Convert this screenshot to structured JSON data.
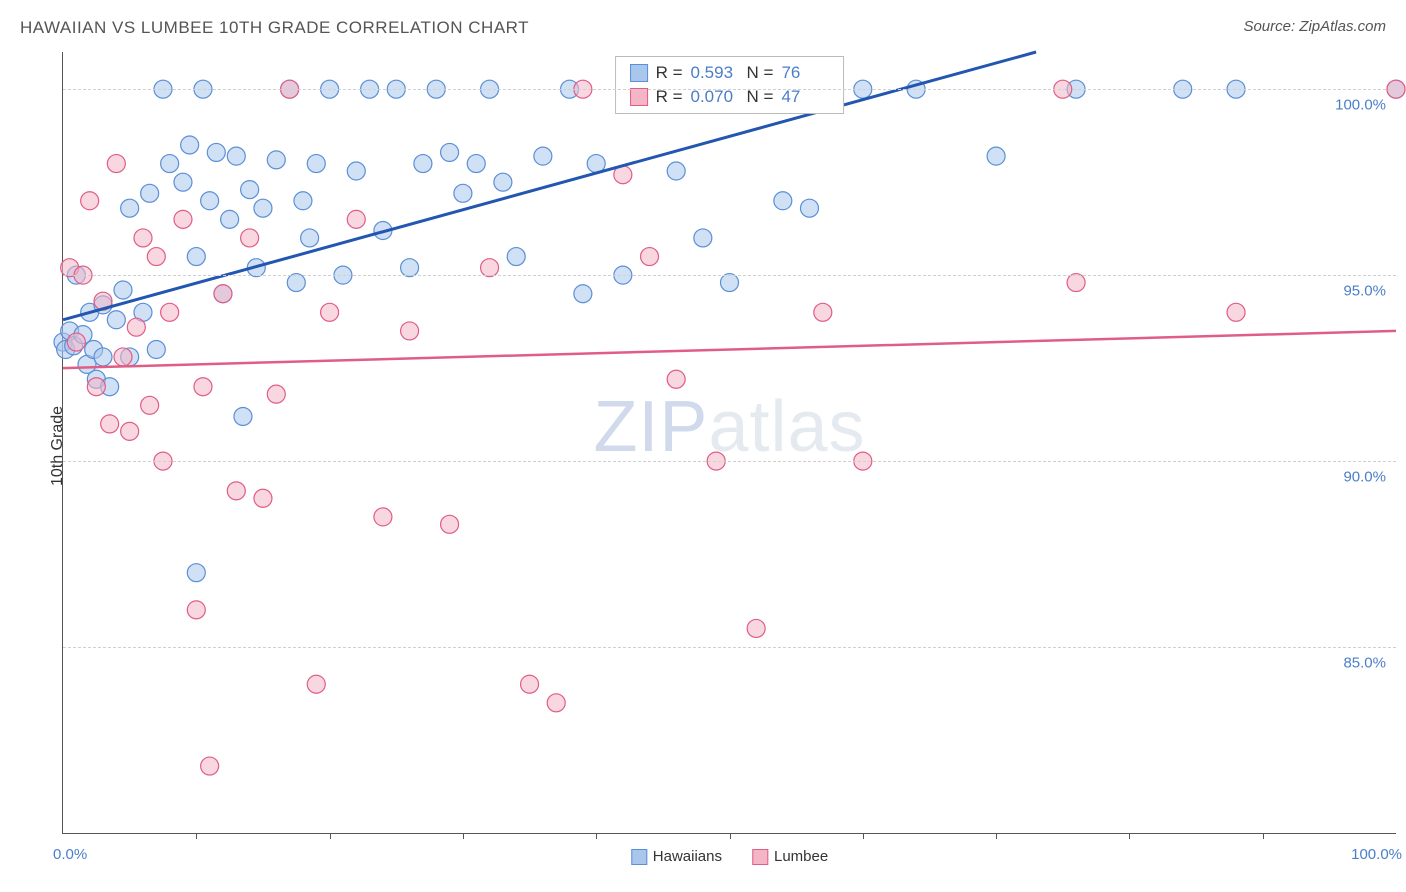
{
  "title": "HAWAIIAN VS LUMBEE 10TH GRADE CORRELATION CHART",
  "source": "Source: ZipAtlas.com",
  "ylabel": "10th Grade",
  "watermark_a": "ZIP",
  "watermark_b": "atlas",
  "chart": {
    "type": "scatter",
    "xlim": [
      0,
      100
    ],
    "ylim": [
      80,
      101
    ],
    "x_ticks_minor": [
      10,
      20,
      30,
      40,
      50,
      60,
      70,
      80,
      90
    ],
    "x_labels": {
      "min": "0.0%",
      "max": "100.0%"
    },
    "y_gridlines": [
      85,
      90,
      95,
      100
    ],
    "y_labels": [
      "85.0%",
      "90.0%",
      "95.0%",
      "100.0%"
    ],
    "grid_color": "#d0d0d0",
    "axis_color": "#555555",
    "label_color": "#4a7ec9",
    "series": [
      {
        "name": "Hawaiians",
        "fill": "#a9c7ec",
        "stroke": "#5b8fd6",
        "fill_opacity": 0.55,
        "marker_r": 9,
        "R": "0.593",
        "N": "76",
        "trend": {
          "x1": 0,
          "y1": 93.8,
          "x2": 73,
          "y2": 101,
          "color": "#2256b0",
          "width": 3
        },
        "points": [
          [
            0,
            93.2
          ],
          [
            0.2,
            93.0
          ],
          [
            0.5,
            93.5
          ],
          [
            0.8,
            93.1
          ],
          [
            1.0,
            95.0
          ],
          [
            1.5,
            93.4
          ],
          [
            1.8,
            92.6
          ],
          [
            2.0,
            94.0
          ],
          [
            2.3,
            93.0
          ],
          [
            2.5,
            92.2
          ],
          [
            3.0,
            94.2
          ],
          [
            3.0,
            92.8
          ],
          [
            3.5,
            92.0
          ],
          [
            4.0,
            93.8
          ],
          [
            4.5,
            94.6
          ],
          [
            5.0,
            92.8
          ],
          [
            5.0,
            96.8
          ],
          [
            6.0,
            94.0
          ],
          [
            6.5,
            97.2
          ],
          [
            7.0,
            93.0
          ],
          [
            7.5,
            100.0
          ],
          [
            8.0,
            98.0
          ],
          [
            9.0,
            97.5
          ],
          [
            9.5,
            98.5
          ],
          [
            10.0,
            87.0
          ],
          [
            10.0,
            95.5
          ],
          [
            10.5,
            100.0
          ],
          [
            11.0,
            97.0
          ],
          [
            11.5,
            98.3
          ],
          [
            12.0,
            94.5
          ],
          [
            12.5,
            96.5
          ],
          [
            13.0,
            98.2
          ],
          [
            13.5,
            91.2
          ],
          [
            14.0,
            97.3
          ],
          [
            14.5,
            95.2
          ],
          [
            15.0,
            96.8
          ],
          [
            16.0,
            98.1
          ],
          [
            17.0,
            100.0
          ],
          [
            17.5,
            94.8
          ],
          [
            18.0,
            97.0
          ],
          [
            18.5,
            96.0
          ],
          [
            19.0,
            98.0
          ],
          [
            20.0,
            100.0
          ],
          [
            21.0,
            95.0
          ],
          [
            22.0,
            97.8
          ],
          [
            23.0,
            100.0
          ],
          [
            24.0,
            96.2
          ],
          [
            25.0,
            100.0
          ],
          [
            26.0,
            95.2
          ],
          [
            27.0,
            98.0
          ],
          [
            28.0,
            100.0
          ],
          [
            29.0,
            98.3
          ],
          [
            30.0,
            97.2
          ],
          [
            31.0,
            98.0
          ],
          [
            32.0,
            100.0
          ],
          [
            33.0,
            97.5
          ],
          [
            34.0,
            95.5
          ],
          [
            36.0,
            98.2
          ],
          [
            38.0,
            100.0
          ],
          [
            39.0,
            94.5
          ],
          [
            40.0,
            98.0
          ],
          [
            42.0,
            95.0
          ],
          [
            44.0,
            100.0
          ],
          [
            46.0,
            97.8
          ],
          [
            48.0,
            96.0
          ],
          [
            50.0,
            94.8
          ],
          [
            52.0,
            100.0
          ],
          [
            54.0,
            97.0
          ],
          [
            56.0,
            96.8
          ],
          [
            60.0,
            100.0
          ],
          [
            64.0,
            100.0
          ],
          [
            70.0,
            98.2
          ],
          [
            76.0,
            100.0
          ],
          [
            84.0,
            100.0
          ],
          [
            88.0,
            100.0
          ],
          [
            100.0,
            100.0
          ]
        ]
      },
      {
        "name": "Lumbee",
        "fill": "#f4b6c6",
        "stroke": "#e05d86",
        "fill_opacity": 0.55,
        "marker_r": 9,
        "R": "0.070",
        "N": "47",
        "trend": {
          "x1": 0,
          "y1": 92.5,
          "x2": 100,
          "y2": 93.5,
          "color": "#e05d86",
          "width": 2.5
        },
        "points": [
          [
            0.5,
            95.2
          ],
          [
            1.0,
            93.2
          ],
          [
            1.5,
            95.0
          ],
          [
            2.0,
            97.0
          ],
          [
            2.5,
            92.0
          ],
          [
            3.0,
            94.3
          ],
          [
            3.5,
            91.0
          ],
          [
            4.0,
            98.0
          ],
          [
            4.5,
            92.8
          ],
          [
            5.0,
            90.8
          ],
          [
            5.5,
            93.6
          ],
          [
            6.0,
            96.0
          ],
          [
            6.5,
            91.5
          ],
          [
            7.0,
            95.5
          ],
          [
            7.5,
            90.0
          ],
          [
            8.0,
            94.0
          ],
          [
            9.0,
            96.5
          ],
          [
            10.0,
            86.0
          ],
          [
            10.5,
            92.0
          ],
          [
            11.0,
            81.8
          ],
          [
            12.0,
            94.5
          ],
          [
            13.0,
            89.2
          ],
          [
            14.0,
            96.0
          ],
          [
            15.0,
            89.0
          ],
          [
            16.0,
            91.8
          ],
          [
            17.0,
            100.0
          ],
          [
            19.0,
            84.0
          ],
          [
            20.0,
            94.0
          ],
          [
            22.0,
            96.5
          ],
          [
            24.0,
            88.5
          ],
          [
            26.0,
            93.5
          ],
          [
            29.0,
            88.3
          ],
          [
            32.0,
            95.2
          ],
          [
            35.0,
            84.0
          ],
          [
            37.0,
            83.5
          ],
          [
            39.0,
            100.0
          ],
          [
            42.0,
            97.7
          ],
          [
            44.0,
            95.5
          ],
          [
            46.0,
            92.2
          ],
          [
            49.0,
            90.0
          ],
          [
            52.0,
            85.5
          ],
          [
            57.0,
            94.0
          ],
          [
            60.0,
            90.0
          ],
          [
            75.0,
            100.0
          ],
          [
            76.0,
            94.8
          ],
          [
            88.0,
            94.0
          ],
          [
            100.0,
            100.0
          ]
        ]
      }
    ]
  },
  "legend_bottom": [
    {
      "label": "Hawaiians",
      "fill": "#a9c7ec",
      "stroke": "#5b8fd6"
    },
    {
      "label": "Lumbee",
      "fill": "#f4b6c6",
      "stroke": "#e05d86"
    }
  ],
  "legend_box_labels": {
    "R": "R  =",
    "N": "N  ="
  }
}
